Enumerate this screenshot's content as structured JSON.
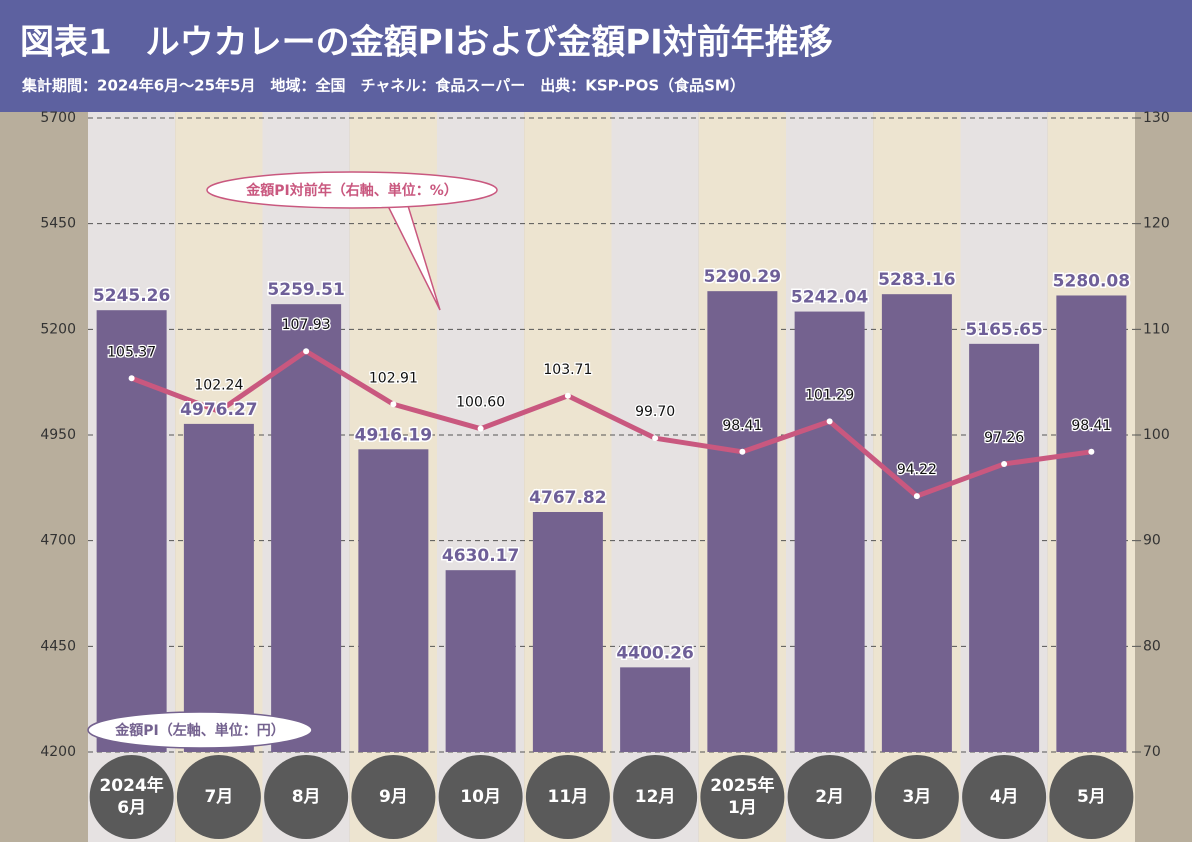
{
  "chart_data": {
    "type": "bar-line",
    "title": "図表1　ルウカレーの金額PIおよび金額PI対前年推移",
    "subtitle": "集計期間：2024年6月～25年5月　地域：全国　チャネル：食品スーパー　出典：KSP-POS（食品SM）",
    "categories": [
      "2024年\n6月",
      "7月",
      "8月",
      "9月",
      "10月",
      "11月",
      "12月",
      "2025年\n1月",
      "2月",
      "3月",
      "4月",
      "5月"
    ],
    "series": [
      {
        "name": "金額PI（左軸、単位：円）",
        "type": "bar",
        "color": "#74628f",
        "values": [
          5245.26,
          4976.27,
          5259.51,
          4916.19,
          4630.17,
          4767.82,
          4400.26,
          5290.29,
          5242.04,
          5283.16,
          5165.65,
          5280.08
        ]
      },
      {
        "name": "金額PI対前年（右軸、単位：%）",
        "type": "line",
        "axis": "y2",
        "color": "#c9587f",
        "values": [
          105.37,
          102.24,
          107.93,
          102.91,
          100.6,
          103.71,
          99.7,
          98.41,
          101.29,
          94.22,
          97.26,
          98.41
        ],
        "value_labels": [
          "105.37",
          "102.24",
          "107.93",
          "102.91",
          "100.60",
          "103.71",
          "99.70",
          "98.41",
          "101.29",
          "94.22",
          "97.26",
          "98.41"
        ]
      }
    ],
    "ylim": [
      4200,
      5700
    ],
    "yticks": [
      5700,
      5450,
      5200,
      4950,
      4700,
      4450,
      4200
    ],
    "y2lim": [
      70,
      130
    ],
    "y2ticks": [
      130,
      120,
      110,
      100,
      90,
      80,
      70
    ],
    "grid": true
  }
}
